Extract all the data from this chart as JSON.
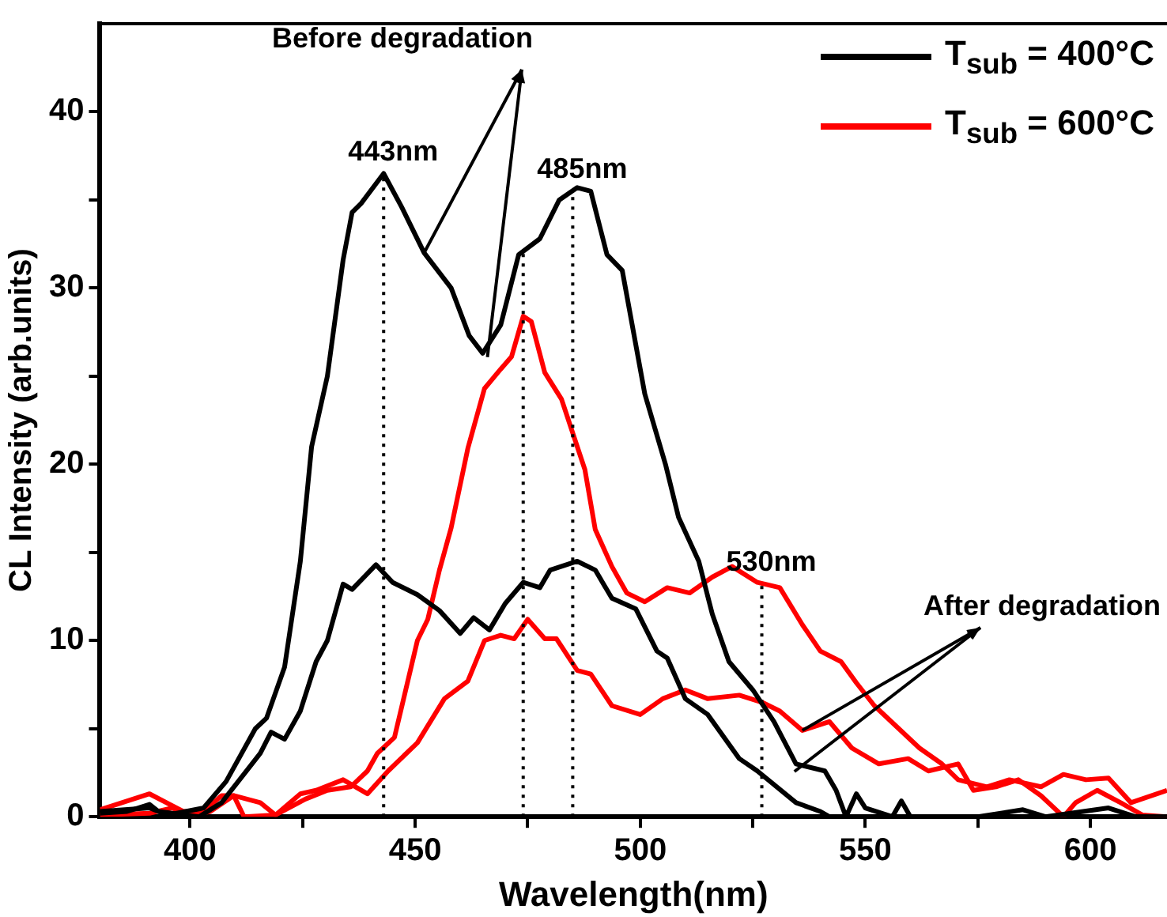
{
  "chart_data": {
    "type": "line",
    "xlabel": "Wavelength(nm)",
    "ylabel": "CL Intensity (arb.units)",
    "xlim": [
      380,
      617
    ],
    "ylim": [
      0,
      45
    ],
    "xticks": [
      400,
      {
        "value": 425,
        "label": null
      },
      450,
      {
        "value": 475,
        "label": null
      },
      500,
      {
        "value": 525,
        "label": null
      },
      550,
      {
        "value": 575,
        "label": null
      },
      600
    ],
    "yticks": [
      0,
      {
        "value": 5,
        "label": null
      },
      10,
      {
        "value": 15,
        "label": null
      },
      20,
      {
        "value": 25,
        "label": null
      },
      30,
      {
        "value": 35,
        "label": null
      },
      40
    ],
    "grid": false,
    "legend": "top right",
    "marker": "none",
    "line_style": "solid",
    "series": [
      {
        "name": "T$_{sub}$ = 400°C",
        "color": "#000000",
        "x": [
          380,
          391,
          395,
          403,
          408,
          414.5,
          417,
          421,
          424.5,
          427,
          430.5,
          434,
          436,
          438,
          443,
          447,
          452,
          458,
          462,
          465,
          469,
          473,
          477.7,
          482,
          486,
          489,
          492.6,
          496,
          501,
          505.6,
          508.5,
          513,
          516,
          519.7,
          525,
          529.7,
          534.6,
          541,
          543.5,
          545.7,
          548,
          550,
          556,
          558,
          560,
          575,
          585,
          590,
          604,
          610,
          617
        ],
        "values": [
          0.3,
          0.5,
          0.1,
          0.5,
          2,
          5,
          5.6,
          8.5,
          14.5,
          21,
          25,
          31.6,
          34.3,
          34.8,
          36.5,
          34.6,
          32,
          30,
          27.3,
          26.3,
          27.9,
          31.9,
          32.8,
          35,
          35.7,
          35.5,
          31.9,
          31,
          24,
          20,
          17,
          14.5,
          11.5,
          8.8,
          7.2,
          5.4,
          3,
          2.6,
          1.5,
          0,
          1.3,
          0.5,
          0,
          0.9,
          0,
          0,
          0.4,
          0,
          0.5,
          0,
          0
        ]
      },
      {
        "color": "#000000",
        "x": [
          380,
          386,
          391,
          393,
          402,
          407,
          411,
          415.6,
          418,
          421,
          424.5,
          428,
          430.5,
          434,
          436,
          441.3,
          445,
          450.5,
          455.4,
          460,
          463,
          466.5,
          470,
          474,
          477.7,
          480,
          486,
          490,
          493.7,
          499,
          503.7,
          506,
          510,
          515,
          522,
          526,
          534.6,
          540,
          542,
          560,
          580,
          600,
          617
        ],
        "values": [
          0.2,
          0.3,
          0.7,
          0.3,
          0,
          0.8,
          2.1,
          3.6,
          4.8,
          4.4,
          6,
          8.8,
          10,
          13.2,
          12.9,
          14.3,
          13.3,
          12.6,
          11.7,
          10.4,
          11.3,
          10.6,
          12.1,
          13.3,
          13,
          14,
          14.5,
          14,
          12.4,
          11.8,
          9.4,
          9,
          6.7,
          5.8,
          3.3,
          2.6,
          0.8,
          0.3,
          0,
          0,
          0,
          0,
          0
        ]
      },
      {
        "name": "T$_{sub}$ = 600°C",
        "color": "#ff0000",
        "x": [
          380,
          391,
          398.5,
          403,
          407,
          409.7,
          412,
          419,
          425.6,
          430.5,
          435.7,
          439.4,
          441.6,
          445.4,
          450.5,
          452.8,
          455.4,
          458,
          461.7,
          465.4,
          469,
          471.4,
          474,
          475.8,
          478.8,
          482.5,
          487.7,
          490,
          493.7,
          497,
          501,
          506,
          511,
          516,
          520.4,
          526,
          531,
          536,
          540,
          544.6,
          548,
          552,
          557,
          562,
          567,
          570.6,
          577,
          582,
          589,
          594,
          599,
          604,
          609,
          617
        ],
        "values": [
          0.4,
          1.3,
          0.3,
          0.3,
          1.2,
          1.2,
          0,
          0.1,
          1,
          1.5,
          1.7,
          2.6,
          3.6,
          4.5,
          10,
          11.2,
          14,
          16.4,
          20.9,
          24.3,
          25.4,
          26.1,
          28.4,
          28.1,
          25.2,
          23.7,
          19.7,
          16.3,
          14.2,
          12.7,
          12.2,
          13,
          12.7,
          13.6,
          14.2,
          13.3,
          13,
          10.9,
          9.4,
          8.8,
          7.6,
          6.3,
          5.1,
          3.9,
          3,
          2.1,
          1.7,
          2.1,
          1.7,
          2.4,
          2.1,
          2.2,
          0.8,
          1.5
        ]
      },
      {
        "color": "#ff0000",
        "x": [
          380,
          391,
          396,
          400.7,
          404.5,
          409.7,
          415.6,
          419,
          424.5,
          428,
          434,
          439.4,
          444,
          450.5,
          456.5,
          461.7,
          465.4,
          469,
          472,
          475,
          478.8,
          481.4,
          486,
          489,
          493.7,
          500,
          505,
          510,
          515,
          522,
          527,
          531,
          536,
          542,
          547,
          553,
          559.5,
          564,
          570.6,
          574,
          579,
          584,
          589,
          594,
          596.7,
          601.5,
          606.7,
          611.5,
          617
        ],
        "values": [
          0.1,
          0.2,
          0.5,
          0.1,
          0.3,
          1.2,
          0.8,
          0.1,
          1.3,
          1.5,
          2.1,
          1.3,
          2.6,
          4.2,
          6.7,
          7.7,
          10,
          10.3,
          10.1,
          11.2,
          10.1,
          10.1,
          8.3,
          8.1,
          6.3,
          5.8,
          6.7,
          7.2,
          6.7,
          6.9,
          6.5,
          6,
          4.9,
          5.4,
          3.9,
          3,
          3.3,
          2.6,
          3,
          1.5,
          1.7,
          2.1,
          1.2,
          0,
          0.8,
          1.5,
          0.8,
          0.1,
          0
        ]
      }
    ],
    "ref_lines": [
      {
        "axis": "x",
        "value": 443,
        "label": "443nm",
        "line_style": "dotted"
      },
      {
        "axis": "x",
        "value": 474,
        "line_style": "dotted"
      },
      {
        "axis": "x",
        "value": 485,
        "label": "485nm",
        "line_style": "dotted"
      },
      {
        "axis": "x",
        "value": 527,
        "label": "530nm",
        "line_style": "dotted"
      }
    ],
    "annotations": [
      {
        "text": "Before degradation",
        "x": 452,
        "y": 32
      },
      {
        "text": "After degradation",
        "x": 536,
        "y": 4.9
      }
    ]
  }
}
